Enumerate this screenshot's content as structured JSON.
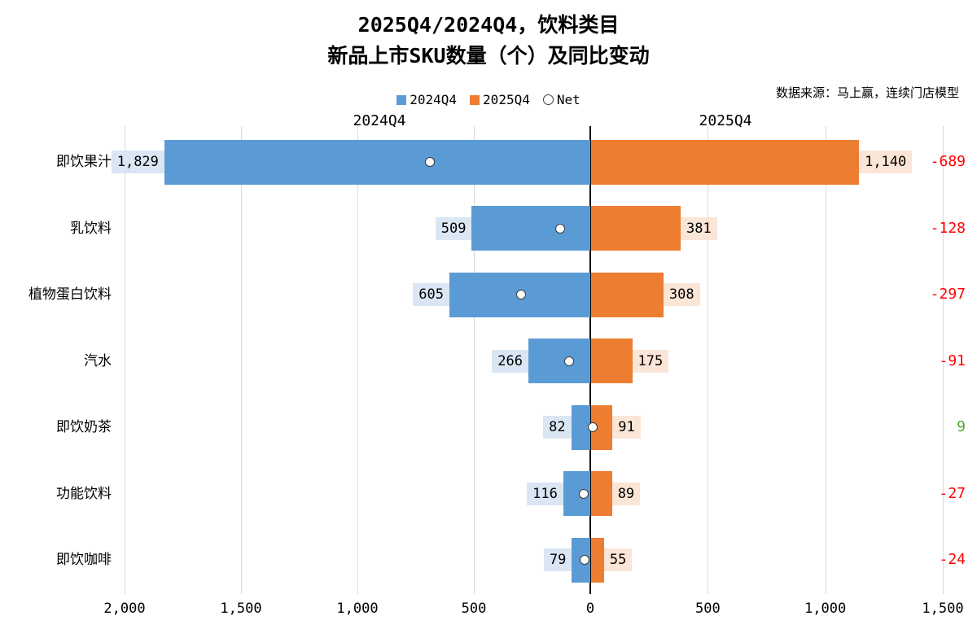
{
  "title": {
    "line1": "2025Q4/2024Q4，饮料类目",
    "line2": "新品上市SKU数量（个）及同比变动"
  },
  "source": "数据来源：马上赢，连续门店模型",
  "legend": [
    {
      "label": "2024Q4",
      "color": "#5b9bd5",
      "shape": "square"
    },
    {
      "label": "2025Q4",
      "color": "#ed7d31",
      "shape": "square"
    },
    {
      "label": "Net",
      "color": "#ffffff",
      "shape": "circle"
    }
  ],
  "column_headers": {
    "left": "2024Q4",
    "right": "2025Q4"
  },
  "chart_data": {
    "type": "bar",
    "subtype": "diverging-horizontal-butterfly",
    "title": "2025Q4/2024Q4，饮料类目 新品上市SKU数量（个）及同比变动",
    "categories": [
      "即饮果汁",
      "乳饮料",
      "植物蛋白饮料",
      "汽水",
      "即饮奶茶",
      "功能饮料",
      "即饮咖啡"
    ],
    "series": [
      {
        "name": "2024Q4",
        "side": "left",
        "color": "#5b9bd5",
        "label_bg": "#dae6f3",
        "values": [
          1829,
          509,
          605,
          266,
          82,
          116,
          79
        ],
        "labels": [
          "1,829",
          "509",
          "605",
          "266",
          "82",
          "116",
          "79"
        ]
      },
      {
        "name": "2025Q4",
        "side": "right",
        "color": "#ed7d31",
        "label_bg": "#fbe5d6",
        "values": [
          1140,
          381,
          308,
          175,
          91,
          89,
          55
        ],
        "labels": [
          "1,140",
          "381",
          "308",
          "175",
          "91",
          "89",
          "55"
        ]
      }
    ],
    "net": {
      "name": "Net",
      "values": [
        -689,
        -128,
        -297,
        -91,
        9,
        -27,
        -24
      ],
      "labels": [
        "-689",
        "-128",
        "-297",
        "-91",
        "9",
        "-27",
        "-24"
      ]
    },
    "x_tick_values": [
      -2000,
      -1500,
      -1000,
      -500,
      0,
      500,
      1000,
      1500
    ],
    "x_tick_labels": [
      "2,000",
      "1,500",
      "1,000",
      "500",
      "0",
      "500",
      "1,000",
      "1,500"
    ],
    "axis_range_left": [
      0,
      2000
    ],
    "axis_range_right": [
      0,
      1500
    ],
    "grid": true,
    "legend_position": "top-center",
    "colors": {
      "blue": "#5b9bd5",
      "orange": "#ed7d31",
      "blue_label_bg": "#dae6f3",
      "orange_label_bg": "#fbe5d6",
      "net_negative": "#ff0000",
      "net_positive": "#4ea72e",
      "gridline": "#d9d9d9",
      "zero_axis": "#000000"
    }
  }
}
